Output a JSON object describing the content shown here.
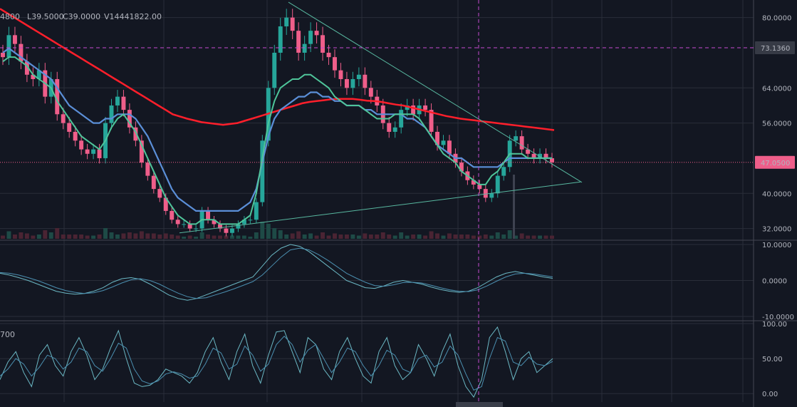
{
  "legend": {
    "open_partial": "4800",
    "low": "L39.5000",
    "close": "C39.0000",
    "volume": "V14441822.00",
    "stoch_param_partial": "700"
  },
  "crosshair": {
    "price_label": "73.1360",
    "price_value": 73.136
  },
  "last_price": {
    "label": "47.0500",
    "value": 47.05,
    "color": "#ef5e8a"
  },
  "colors": {
    "background": "#131722",
    "grid": "#2a2e39",
    "up": "#26a69a",
    "down": "#ef5e8a",
    "ema_fast": "#4fc59a",
    "sma_slow": "#5b8fd8",
    "ma_long": "#ff1f2b",
    "oscillator": "#5aa9b8",
    "trendline": "#58b8a0",
    "crosshair": "#c54bd0"
  },
  "chart_data": [
    {
      "type": "candlestick",
      "panel": "price",
      "ylim": [
        29.5,
        84
      ],
      "yticks": [
        {
          "value": 80,
          "label": "80.0000"
        },
        {
          "value": 64,
          "label": "64.0000"
        },
        {
          "value": 56,
          "label": "56.0000"
        },
        {
          "value": 40,
          "label": "40.0000"
        },
        {
          "value": 32,
          "label": "32.0000"
        }
      ],
      "close_series": [
        71,
        76,
        74,
        70,
        67,
        66,
        68,
        62,
        66,
        58,
        56,
        54,
        52,
        50,
        49,
        50,
        48,
        56,
        60,
        62,
        59,
        55,
        52,
        47,
        44,
        41,
        39,
        36,
        34,
        33,
        33,
        32,
        32,
        36,
        34,
        33,
        32,
        31,
        32,
        33,
        34,
        34,
        38,
        52,
        64,
        72,
        78,
        80,
        77,
        72,
        74,
        77,
        76,
        72,
        71,
        68,
        66,
        64,
        66,
        67,
        64,
        62,
        60,
        56,
        54,
        55,
        59,
        60,
        58,
        60,
        59,
        54,
        51,
        52,
        49,
        47,
        45,
        43,
        42,
        41,
        39,
        40,
        44,
        46,
        52,
        53,
        50,
        49,
        48,
        49,
        48,
        47.05
      ],
      "ema_fast": [
        70,
        71,
        71,
        70,
        69,
        67,
        66,
        65,
        64,
        61,
        59,
        57,
        55,
        53,
        52,
        51,
        50,
        52,
        55,
        57,
        58,
        56,
        54,
        51,
        48,
        45,
        42,
        39,
        37,
        35,
        34,
        33,
        33,
        34,
        34,
        34,
        33,
        33,
        33,
        33,
        34,
        35,
        40,
        48,
        56,
        61,
        64,
        65,
        66,
        66,
        67,
        67,
        66,
        65,
        64,
        62,
        61,
        60,
        60,
        60,
        59,
        58,
        57,
        57,
        57,
        58,
        58,
        58,
        58,
        57,
        55,
        53,
        51,
        49,
        48,
        47,
        45,
        44,
        43,
        42,
        42,
        44,
        45,
        47,
        49,
        49,
        49,
        48,
        48,
        48,
        48,
        48
      ],
      "sma_slow": [
        72,
        73,
        72,
        71,
        70,
        69,
        68,
        67,
        66,
        64,
        62,
        60,
        59,
        58,
        57,
        56,
        56,
        57,
        57,
        58,
        58,
        58,
        57,
        55,
        53,
        50,
        47,
        44,
        41,
        39,
        38,
        37,
        36,
        36,
        36,
        36,
        36,
        36,
        36,
        36,
        37,
        38,
        41,
        47,
        53,
        57,
        59,
        60,
        61,
        62,
        62,
        63,
        63,
        62,
        62,
        61,
        61,
        60,
        60,
        60,
        59,
        59,
        58,
        58,
        58,
        58,
        58,
        57,
        57,
        56,
        55,
        53,
        51,
        50,
        49,
        48,
        48,
        47,
        46,
        46,
        46,
        46,
        46,
        47,
        48,
        48,
        48,
        48,
        48,
        48,
        48,
        48
      ],
      "ma_long": [
        82,
        81,
        80,
        79,
        78,
        77,
        76,
        75,
        74,
        73,
        72,
        71,
        70,
        69,
        68,
        67,
        66,
        65,
        64,
        63,
        62,
        61,
        60,
        59,
        58,
        57.5,
        57,
        56.6,
        56.2,
        56,
        55.8,
        55.6,
        55.8,
        56,
        56.5,
        57,
        57.5,
        58,
        58.5,
        59,
        59.5,
        60,
        60.5,
        60.8,
        61,
        61.2,
        61.4,
        61.5,
        61.5,
        61.5,
        61.3,
        61.1,
        61,
        60.8,
        60.5,
        60.2,
        60,
        59.6,
        59.2,
        58.8,
        58.4,
        58,
        57.6,
        57.3,
        57,
        56.8,
        56.6,
        56.4,
        56.2,
        56,
        55.8,
        55.6,
        55.4,
        55.2,
        55,
        54.8,
        54.6,
        54.4
      ],
      "trendline_upper": [
        {
          "x": 0.36,
          "y": 83.5
        },
        {
          "x": 0.73,
          "y": 42.5
        }
      ],
      "trendline_lower": [
        {
          "x": 0.225,
          "y": 31
        },
        {
          "x": 0.73,
          "y": 42.6
        }
      ]
    },
    {
      "type": "line",
      "panel": "oscillator",
      "ylim": [
        -11,
        11
      ],
      "yticks": [
        {
          "value": 10,
          "label": "10.0000"
        },
        {
          "value": 0,
          "label": "0.0000"
        },
        {
          "value": -10,
          "label": "-10.0000"
        }
      ],
      "series": [
        {
          "values": [
            2,
            1.5,
            0.8,
            0,
            -1,
            -2,
            -3,
            -3.5,
            -3.8,
            -3.6,
            -3,
            -2,
            -0.5,
            0.5,
            0.8,
            0.3,
            -1,
            -2.5,
            -4,
            -5,
            -5.5,
            -5,
            -4,
            -3,
            -2,
            -1,
            0,
            1,
            4,
            7,
            9,
            10,
            9.5,
            8,
            6,
            4,
            2,
            0,
            -1,
            -2,
            -2.2,
            -1.5,
            -0.5,
            0,
            -0.5,
            -1,
            -1.8,
            -2.5,
            -3,
            -3.3,
            -3,
            -2,
            -0.5,
            1,
            2,
            2.5,
            2,
            1.5,
            1,
            0.6
          ]
        },
        {
          "values": [
            2.2,
            2,
            1.5,
            0.8,
            0,
            -1,
            -2,
            -2.8,
            -3.3,
            -3.6,
            -3.4,
            -2.8,
            -1.8,
            -0.7,
            0.2,
            0.5,
            0,
            -1,
            -2.3,
            -3.5,
            -4.5,
            -5,
            -4.8,
            -4,
            -3.2,
            -2.3,
            -1.3,
            -0.3,
            1.5,
            4,
            6.5,
            8.5,
            9,
            8.5,
            7.2,
            5.6,
            3.8,
            2,
            0.7,
            -0.5,
            -1.4,
            -1.6,
            -1.2,
            -0.6,
            -0.5,
            -0.7,
            -1.3,
            -2,
            -2.6,
            -3,
            -3.1,
            -2.6,
            -1.5,
            -0.2,
            1,
            1.8,
            2,
            1.8,
            1.4,
            1
          ]
        }
      ]
    },
    {
      "type": "line",
      "panel": "stochastic",
      "ylim": [
        -12,
        103
      ],
      "yticks": [
        {
          "value": 100,
          "label": "100.00"
        },
        {
          "value": 50,
          "label": "50.00"
        },
        {
          "value": 0,
          "label": "0.00"
        }
      ],
      "series": [
        {
          "values": [
            20,
            45,
            60,
            30,
            10,
            55,
            70,
            40,
            25,
            60,
            80,
            55,
            20,
            35,
            65,
            90,
            50,
            15,
            10,
            12,
            20,
            35,
            30,
            25,
            15,
            30,
            60,
            80,
            45,
            20,
            60,
            85,
            40,
            15,
            55,
            88,
            90,
            60,
            30,
            80,
            70,
            35,
            20,
            60,
            80,
            50,
            25,
            15,
            60,
            80,
            40,
            20,
            30,
            70,
            50,
            25,
            60,
            85,
            40,
            10,
            -5,
            20,
            80,
            95,
            60,
            20,
            50,
            60,
            30,
            40,
            50
          ]
        },
        {
          "values": [
            25,
            35,
            50,
            42,
            25,
            38,
            55,
            50,
            35,
            45,
            65,
            60,
            40,
            32,
            50,
            72,
            65,
            35,
            18,
            14,
            18,
            28,
            31,
            28,
            22,
            25,
            42,
            65,
            58,
            35,
            42,
            68,
            55,
            32,
            42,
            70,
            82,
            70,
            45,
            62,
            70,
            50,
            30,
            45,
            65,
            60,
            40,
            25,
            40,
            62,
            55,
            35,
            30,
            50,
            55,
            38,
            45,
            68,
            55,
            28,
            5,
            10,
            50,
            80,
            75,
            45,
            40,
            52,
            42,
            40,
            46
          ]
        }
      ]
    }
  ]
}
